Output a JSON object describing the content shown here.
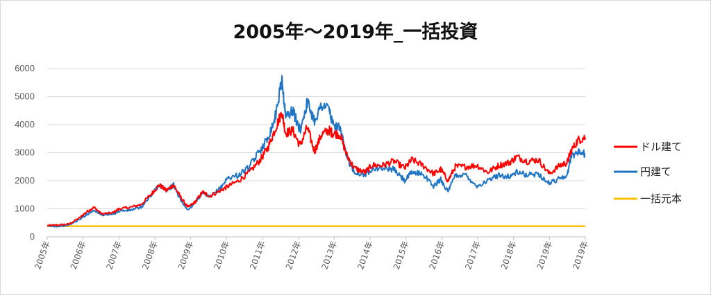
{
  "chart_data": {
    "type": "line",
    "title": "2005年～2019年_一括投資",
    "xlabel": "",
    "ylabel": "",
    "ylim": [
      0,
      6000
    ],
    "yticks": [
      "0",
      "1000",
      "2000",
      "3000",
      "4000",
      "5000",
      "6000"
    ],
    "xlim": [
      2005.0,
      2019.9
    ],
    "xticks": [
      "2005年",
      "2006年",
      "2007年",
      "2008年",
      "2009年",
      "2010年",
      "2011年",
      "2012年",
      "2013年",
      "2014年",
      "2015年",
      "2016年",
      "2017年",
      "2018年",
      "2019年",
      "2019年"
    ],
    "grid": true,
    "legend": "right",
    "series": [
      {
        "name": "ドル建て",
        "color": "#ff0000",
        "x": [
          2005.0,
          2005.3,
          2005.6,
          2005.9,
          2006.1,
          2006.3,
          2006.5,
          2006.8,
          2007.0,
          2007.3,
          2007.6,
          2007.9,
          2008.1,
          2008.3,
          2008.5,
          2008.7,
          2008.9,
          2009.1,
          2009.3,
          2009.5,
          2009.8,
          2010.0,
          2010.3,
          2010.6,
          2010.9,
          2011.1,
          2011.3,
          2011.5,
          2011.6,
          2011.8,
          2012.0,
          2012.2,
          2012.4,
          2012.6,
          2012.8,
          2012.9,
          2013.1,
          2013.3,
          2013.5,
          2013.8,
          2014.0,
          2014.3,
          2014.6,
          2014.9,
          2015.1,
          2015.4,
          2015.7,
          2015.9,
          2016.1,
          2016.3,
          2016.6,
          2016.9,
          2017.2,
          2017.5,
          2017.8,
          2018.0,
          2018.3,
          2018.6,
          2018.9,
          2019.2,
          2019.4,
          2019.5,
          2019.7,
          2019.9
        ],
        "values": [
          400,
          420,
          450,
          680,
          900,
          1050,
          820,
          850,
          1000,
          1050,
          1150,
          1550,
          1850,
          1650,
          1850,
          1400,
          1050,
          1250,
          1600,
          1450,
          1650,
          1800,
          2000,
          2300,
          2750,
          3150,
          3800,
          4450,
          3700,
          3800,
          3250,
          3900,
          3050,
          3650,
          3800,
          3700,
          3650,
          2900,
          2450,
          2300,
          2550,
          2550,
          2700,
          2450,
          2750,
          2550,
          2250,
          2400,
          2000,
          2500,
          2500,
          2550,
          2300,
          2550,
          2650,
          2850,
          2700,
          2750,
          2250,
          2550,
          2650,
          3050,
          3450,
          3550
        ]
      },
      {
        "name": "円建て",
        "color": "#1f74c4",
        "x": [
          2005.0,
          2005.3,
          2005.6,
          2005.9,
          2006.1,
          2006.3,
          2006.5,
          2006.8,
          2007.0,
          2007.3,
          2007.6,
          2007.9,
          2008.1,
          2008.3,
          2008.5,
          2008.7,
          2008.9,
          2009.1,
          2009.3,
          2009.5,
          2009.8,
          2010.0,
          2010.3,
          2010.6,
          2010.9,
          2011.1,
          2011.3,
          2011.5,
          2011.6,
          2011.8,
          2012.0,
          2012.2,
          2012.4,
          2012.6,
          2012.8,
          2012.9,
          2013.1,
          2013.3,
          2013.5,
          2013.8,
          2014.0,
          2014.3,
          2014.6,
          2014.9,
          2015.1,
          2015.4,
          2015.7,
          2015.9,
          2016.1,
          2016.3,
          2016.6,
          2016.9,
          2017.2,
          2017.5,
          2017.8,
          2018.0,
          2018.3,
          2018.6,
          2018.9,
          2019.2,
          2019.4,
          2019.5,
          2019.7,
          2019.9
        ],
        "values": [
          380,
          380,
          420,
          620,
          800,
          950,
          780,
          800,
          920,
          950,
          1050,
          1500,
          1880,
          1650,
          1850,
          1300,
          950,
          1250,
          1550,
          1400,
          1750,
          2100,
          2200,
          2500,
          3100,
          3500,
          4200,
          5600,
          4300,
          4500,
          3800,
          4800,
          4150,
          4700,
          4600,
          4000,
          3900,
          2800,
          2350,
          2200,
          2450,
          2450,
          2400,
          2000,
          2300,
          2250,
          1800,
          2050,
          1600,
          2200,
          2200,
          1800,
          2000,
          2200,
          2150,
          2300,
          2200,
          2250,
          1900,
          2100,
          2200,
          2850,
          3050,
          2950
        ]
      },
      {
        "name": "一括元本",
        "color": "#ffc000",
        "x": [
          2005.0,
          2019.9
        ],
        "values": [
          380,
          380
        ]
      }
    ]
  }
}
